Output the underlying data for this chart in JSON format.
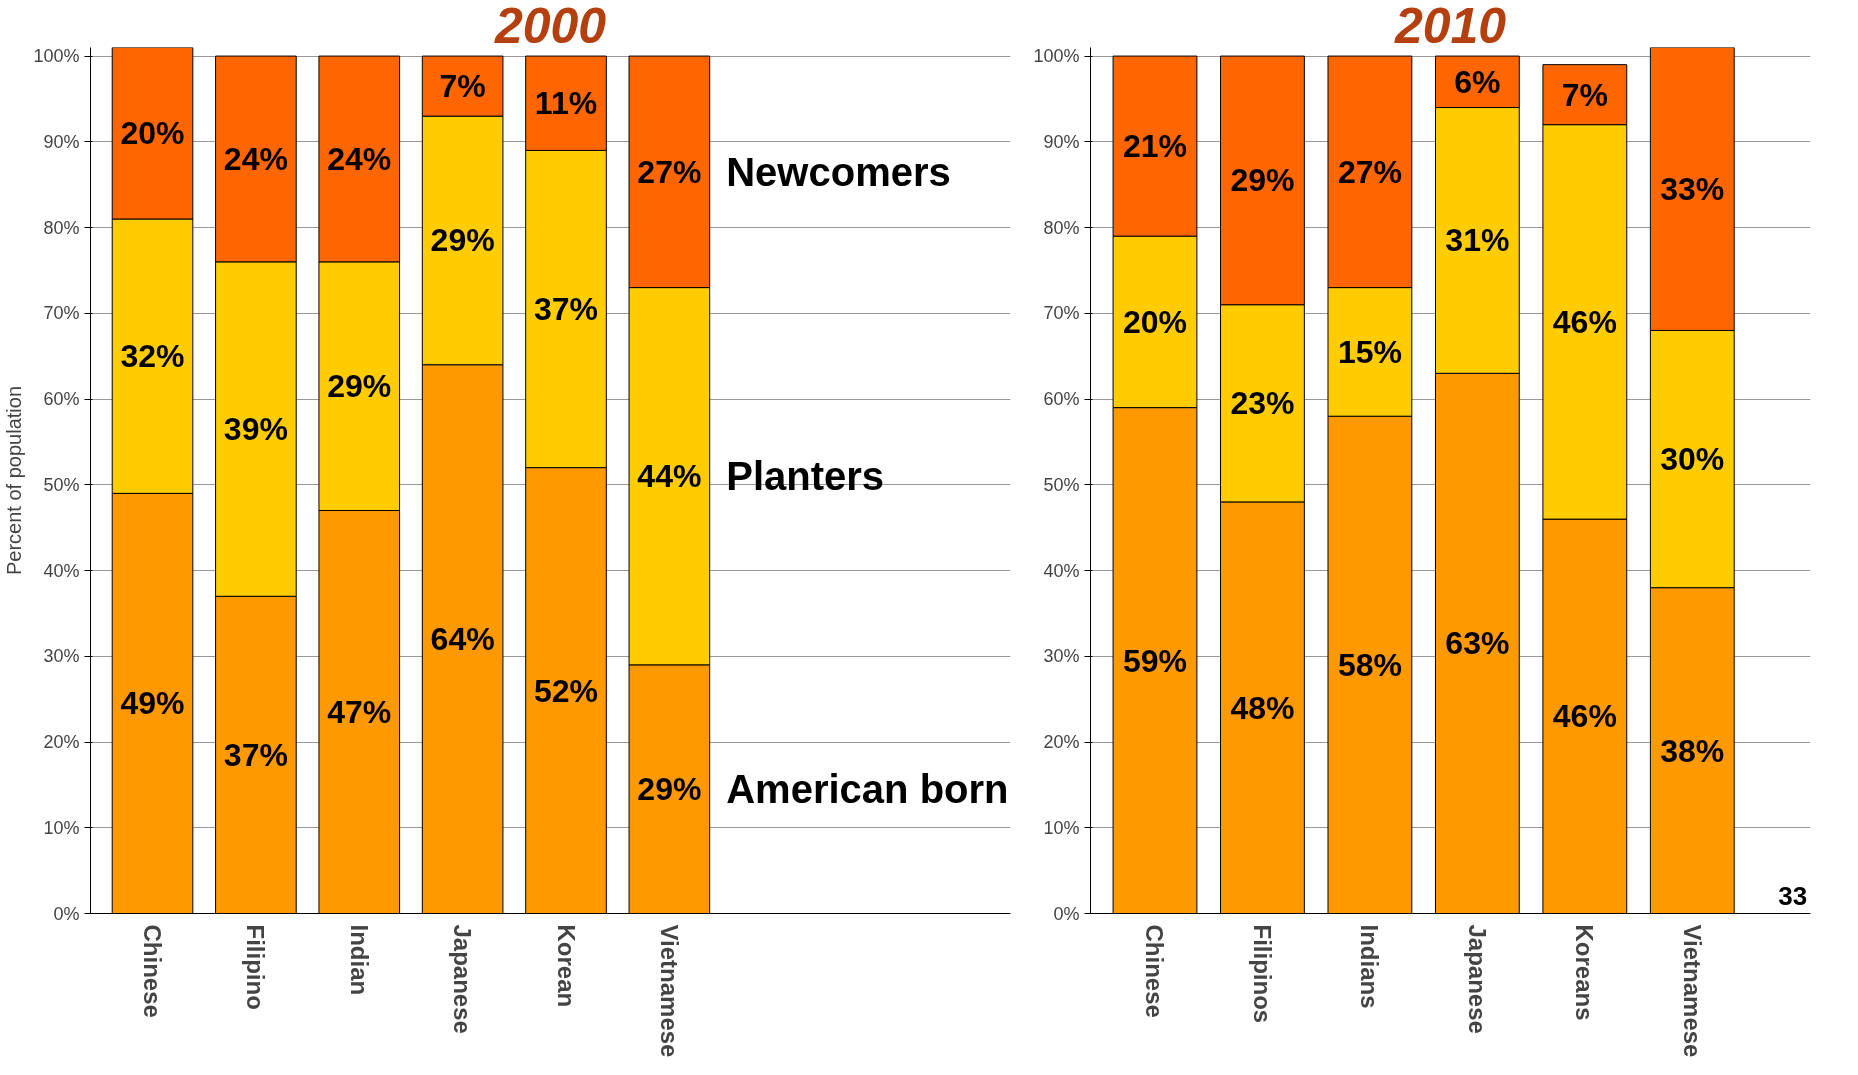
{
  "chart_data": [
    {
      "type": "bar",
      "title": "2000",
      "ylabel": "Percent of population",
      "categories": [
        "Chinese",
        "Filipino",
        "Indian",
        "Japanese",
        "Korean",
        "Vietnamese"
      ],
      "stacked": true,
      "grid": "y",
      "ylim": [
        0,
        101
      ],
      "yticks": [
        {
          "value": 0,
          "label": "0%"
        },
        {
          "value": 10,
          "label": "10%"
        },
        {
          "value": 20,
          "label": "20%"
        },
        {
          "value": 30,
          "label": "30%"
        },
        {
          "value": 40,
          "label": "40%"
        },
        {
          "value": 50,
          "label": "50%"
        },
        {
          "value": 60,
          "label": "60%"
        },
        {
          "value": 70,
          "label": "70%"
        },
        {
          "value": 80,
          "label": "80%"
        },
        {
          "value": 90,
          "label": "90%"
        },
        {
          "value": 100,
          "label": "100%"
        }
      ],
      "series": [
        {
          "name": "American born",
          "color": "#ff9900",
          "values": [
            49,
            37,
            47,
            64,
            52,
            29
          ],
          "value_labels": [
            "49%",
            "37%",
            "47%",
            "64%",
            "52%",
            "29%"
          ]
        },
        {
          "name": "Planters",
          "color": "#ffcc00",
          "values": [
            32,
            39,
            29,
            29,
            37,
            44
          ],
          "value_labels": [
            "32%",
            "39%",
            "29%",
            "29%",
            "37%",
            "44%"
          ]
        },
        {
          "name": "Newcomers",
          "color": "#ff6600",
          "values": [
            20,
            24,
            24,
            7,
            11,
            27
          ],
          "value_labels": [
            "20%",
            "24%",
            "24%",
            "7%",
            "11%",
            "27%"
          ]
        }
      ]
    },
    {
      "type": "bar",
      "title": "2010",
      "categories": [
        "Chinese",
        "Filipinos",
        "Indians",
        "Japanese",
        "Koreans",
        "Vietnamese"
      ],
      "stacked": true,
      "grid": "y",
      "ylim": [
        0,
        101
      ],
      "yticks": [
        {
          "value": 0,
          "label": "0%"
        },
        {
          "value": 10,
          "label": "10%"
        },
        {
          "value": 20,
          "label": "20%"
        },
        {
          "value": 30,
          "label": "30%"
        },
        {
          "value": 40,
          "label": "40%"
        },
        {
          "value": 50,
          "label": "50%"
        },
        {
          "value": 60,
          "label": "60%"
        },
        {
          "value": 70,
          "label": "70%"
        },
        {
          "value": 80,
          "label": "80%"
        },
        {
          "value": 90,
          "label": "90%"
        },
        {
          "value": 100,
          "label": "100%"
        }
      ],
      "annotations": [
        "33"
      ],
      "series": [
        {
          "color": "#ff9900",
          "values": [
            59,
            48,
            58,
            63,
            46,
            38
          ],
          "value_labels": [
            "59%",
            "48%",
            "58%",
            "63%",
            "46%",
            "38%"
          ]
        },
        {
          "color": "#ffcc00",
          "values": [
            20,
            23,
            15,
            31,
            46,
            30
          ],
          "value_labels": [
            "20%",
            "23%",
            "15%",
            "31%",
            "46%",
            "30%"
          ]
        },
        {
          "color": "#ff6600",
          "values": [
            21,
            29,
            27,
            6,
            7,
            33
          ],
          "value_labels": [
            "21%",
            "29%",
            "27%",
            "6%",
            "7%",
            "33%"
          ]
        }
      ]
    }
  ]
}
